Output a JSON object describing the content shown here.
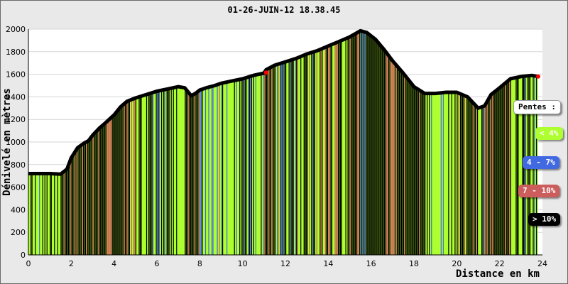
{
  "chart_data": {
    "type": "area",
    "title": "01-26-JUIN-12 18.38.45",
    "xlabel": "Distance en km",
    "ylabel": "Dénivelé en mètres",
    "xlim": [
      0,
      24
    ],
    "ylim": [
      0,
      2000
    ],
    "x_ticks": [
      0,
      2,
      4,
      6,
      8,
      10,
      12,
      14,
      16,
      18,
      20,
      22,
      24
    ],
    "y_ticks": [
      0,
      200,
      400,
      600,
      800,
      1000,
      1200,
      1400,
      1600,
      1800,
      2000
    ],
    "grid": true,
    "fill_colors": {
      "lt4": "#adff2f",
      "p4_7": "#4169e1",
      "p7_10": "#cd5c5c",
      "gt10": "#000000"
    },
    "series": [
      {
        "x": [
          0,
          0.5,
          1.0,
          1.5,
          1.8,
          2.0,
          2.3,
          2.6,
          2.8,
          3.0,
          3.3,
          3.6,
          4.0,
          4.3,
          4.6,
          5.0,
          5.5,
          6.0,
          6.5,
          7.0,
          7.3,
          7.6,
          7.8,
          8.0,
          8.3,
          8.7,
          9.0,
          9.5,
          10.0,
          10.5,
          11.0,
          11.1,
          11.5,
          12.0,
          12.5,
          13.0,
          13.5,
          14.0,
          14.5,
          15.0,
          15.5,
          15.8,
          16.2,
          16.6,
          17.0,
          17.5,
          18.0,
          18.5,
          19.0,
          19.5,
          20.0,
          20.5,
          21.0,
          21.3,
          21.6,
          22.0,
          22.5,
          23.0,
          23.5,
          23.8
        ],
        "y": [
          720,
          720,
          720,
          715,
          760,
          860,
          950,
          990,
          1010,
          1060,
          1120,
          1170,
          1240,
          1310,
          1360,
          1390,
          1420,
          1450,
          1470,
          1490,
          1480,
          1410,
          1430,
          1460,
          1480,
          1500,
          1520,
          1540,
          1560,
          1590,
          1610,
          1640,
          1680,
          1710,
          1740,
          1780,
          1810,
          1850,
          1890,
          1930,
          1985,
          1970,
          1910,
          1820,
          1720,
          1610,
          1490,
          1430,
          1430,
          1440,
          1440,
          1400,
          1300,
          1320,
          1420,
          1480,
          1560,
          1580,
          1590,
          1580
        ]
      }
    ],
    "markers": [
      {
        "x": 11.1,
        "y": 1615,
        "color": "#ff0000"
      },
      {
        "x": 23.8,
        "y": 1580,
        "color": "#ff0000"
      }
    ],
    "legend": {
      "title": "Pentes :",
      "items": [
        {
          "key": "lt4",
          "label": "< 4%",
          "bg": "#adff2f",
          "fg": "#ffffff"
        },
        {
          "key": "p4_7",
          "label": "4 - 7%",
          "bg": "#4169e1",
          "fg": "#ffffff"
        },
        {
          "key": "p7_10",
          "label": "7 - 10%",
          "bg": "#cd5c5c",
          "fg": "#ffffff"
        },
        {
          "key": "gt10",
          "label": "> 10%",
          "bg": "#000000",
          "fg": "#ffffff"
        }
      ]
    }
  }
}
